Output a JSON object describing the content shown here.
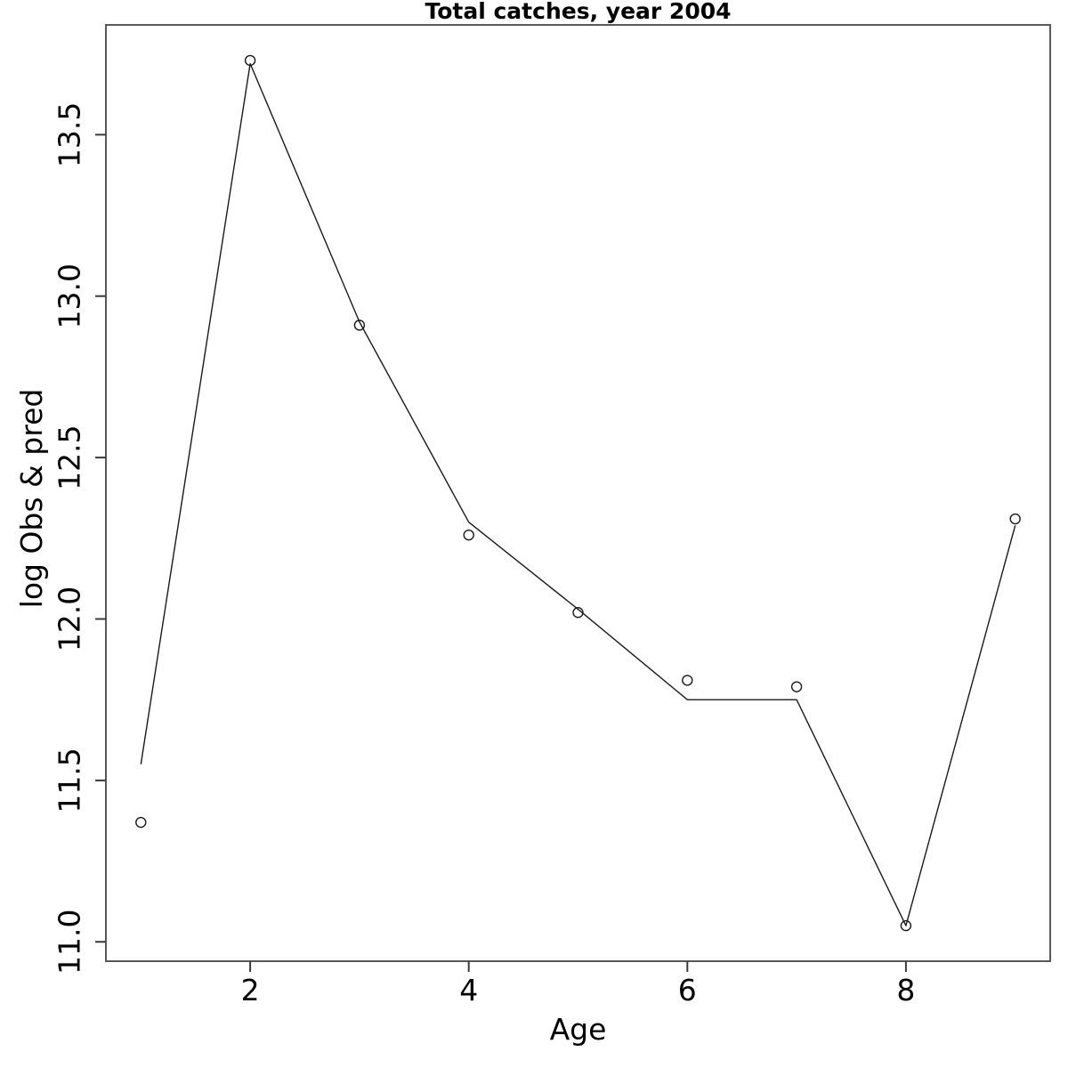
{
  "chart_data": {
    "type": "line",
    "title": "Total catches, year 2004",
    "xlabel": "Age",
    "ylabel": "log Obs & pred",
    "x": [
      1,
      2,
      3,
      4,
      5,
      6,
      7,
      8,
      9
    ],
    "series": [
      {
        "name": "observed",
        "style": "open-circle-points",
        "values": [
          11.37,
          13.73,
          12.91,
          12.26,
          12.02,
          11.81,
          11.79,
          11.05,
          12.31
        ]
      },
      {
        "name": "predicted",
        "style": "line",
        "values": [
          11.55,
          13.72,
          12.92,
          12.3,
          12.03,
          11.75,
          11.75,
          11.05,
          12.29
        ]
      }
    ],
    "xtick_values": [
      2,
      4,
      6,
      8
    ],
    "xtick_labels": [
      "2",
      "4",
      "6",
      "8"
    ],
    "ytick_values": [
      11.0,
      11.5,
      12.0,
      12.5,
      13.0,
      13.5
    ],
    "ytick_labels": [
      "11.0",
      "11.5",
      "12.0",
      "12.5",
      "13.0",
      "13.5"
    ],
    "xlim": [
      0.68,
      9.32
    ],
    "ylim": [
      10.94,
      13.84
    ],
    "grid": false,
    "legend": "none",
    "colors": {
      "box": "#595959",
      "tick": "#3a3a3a",
      "line": "#1a1a1a",
      "point": "#1a1a1a",
      "text": "#000000"
    }
  }
}
